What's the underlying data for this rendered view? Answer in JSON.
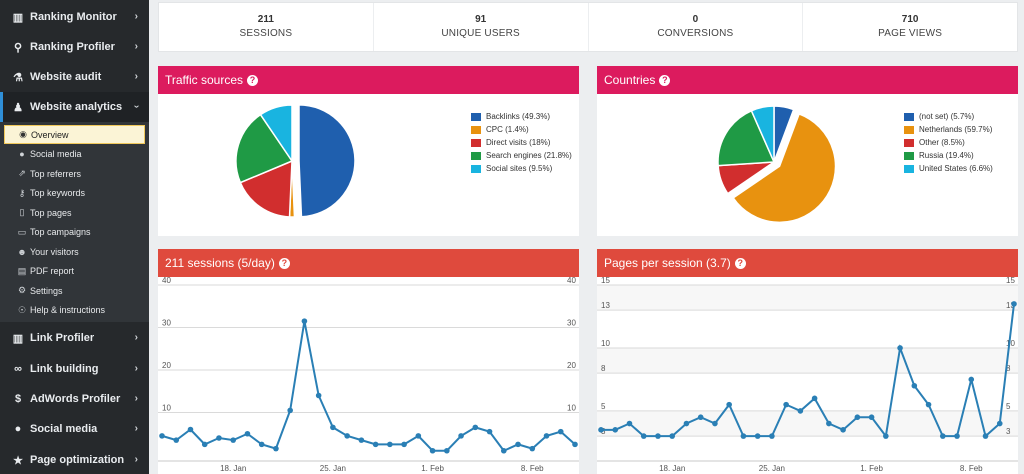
{
  "sidebar": {
    "items": [
      {
        "label": "Ranking Monitor",
        "icon": "bar-chart-icon",
        "glyph": "▥"
      },
      {
        "label": "Ranking Profiler",
        "icon": "search-icon",
        "glyph": "⚲"
      },
      {
        "label": "Website audit",
        "icon": "flask-icon",
        "glyph": "⚗"
      },
      {
        "label": "Website analytics",
        "icon": "person-icon",
        "glyph": "♟"
      },
      {
        "label": "Link Profiler",
        "icon": "bar-chart-icon",
        "glyph": "▥"
      },
      {
        "label": "Link building",
        "icon": "link-icon",
        "glyph": "∞"
      },
      {
        "label": "AdWords Profiler",
        "icon": "dollar-icon",
        "glyph": "$"
      },
      {
        "label": "Social media",
        "icon": "comments-icon",
        "glyph": "●"
      },
      {
        "label": "Page optimization",
        "icon": "star-icon",
        "glyph": "★"
      }
    ],
    "submenu": [
      {
        "label": "Overview",
        "icon": "eye-icon",
        "glyph": "◉"
      },
      {
        "label": "Social media",
        "icon": "comments-icon",
        "glyph": "●"
      },
      {
        "label": "Top referrers",
        "icon": "arrows-icon",
        "glyph": "⇗"
      },
      {
        "label": "Top keywords",
        "icon": "key-icon",
        "glyph": "⚷"
      },
      {
        "label": "Top pages",
        "icon": "file-icon",
        "glyph": "▯"
      },
      {
        "label": "Top campaigns",
        "icon": "desktop-icon",
        "glyph": "▭"
      },
      {
        "label": "Your visitors",
        "icon": "users-icon",
        "glyph": "☻"
      },
      {
        "label": "PDF report",
        "icon": "document-icon",
        "glyph": "▤"
      },
      {
        "label": "Settings",
        "icon": "cogs-icon",
        "glyph": "⚙"
      },
      {
        "label": "Help & instructions",
        "icon": "lightbulb-icon",
        "glyph": "☉"
      }
    ]
  },
  "stats": [
    {
      "value": "211",
      "label": "SESSIONS"
    },
    {
      "value": "91",
      "label": "UNIQUE USERS"
    },
    {
      "value": "0",
      "label": "CONVERSIONS"
    },
    {
      "value": "710",
      "label": "PAGE VIEWS"
    }
  ],
  "panels": {
    "traffic_title": "Traffic sources",
    "countries_title": "Countries",
    "sessions_title": "211 sessions (5/day)",
    "pages_title": "Pages per session (3.7)"
  },
  "colors": {
    "blue": "#1f5fae",
    "orange": "#e8920f",
    "red": "#d12e2e",
    "green": "#1f9a45",
    "cyan": "#19b4e0",
    "line": "#2a7fb5"
  },
  "chart_data": [
    {
      "type": "pie",
      "categories": [
        "Backlinks",
        "CPC",
        "Direct visits",
        "Search engines",
        "Social sites"
      ],
      "values": [
        49.3,
        1.4,
        18,
        21.8,
        9.5
      ],
      "legend": [
        "Backlinks (49.3%)",
        "CPC (1.4%)",
        "Direct visits (18%)",
        "Search engines (21.8%)",
        "Social sites (9.5%)"
      ],
      "colors": [
        "#1f5fae",
        "#e8920f",
        "#d12e2e",
        "#1f9a45",
        "#19b4e0"
      ],
      "exploded": 0
    },
    {
      "type": "pie",
      "categories": [
        "(not set)",
        "Netherlands",
        "Other",
        "Russia",
        "United States"
      ],
      "values": [
        5.7,
        59.7,
        8.5,
        19.4,
        6.6
      ],
      "legend": [
        "(not set) (5.7%)",
        "Netherlands (59.7%)",
        "Other (8.5%)",
        "Russia (19.4%)",
        "United States (6.6%)"
      ],
      "colors": [
        "#1f5fae",
        "#e8920f",
        "#d12e2e",
        "#1f9a45",
        "#19b4e0"
      ],
      "exploded": 1
    },
    {
      "type": "line",
      "ylim": [
        0,
        40
      ],
      "yticks": [
        10,
        20,
        30,
        40
      ],
      "xticks": [
        {
          "label": "18. Jan",
          "index": 5
        },
        {
          "label": "25. Jan",
          "index": 12
        },
        {
          "label": "1. Feb",
          "index": 19
        },
        {
          "label": "8. Feb",
          "index": 26
        }
      ],
      "values": [
        4.5,
        3.5,
        6,
        2.5,
        4,
        3.5,
        5,
        2.5,
        1.5,
        10.5,
        31.5,
        14,
        6.5,
        4.5,
        3.5,
        2.5,
        2.5,
        2.5,
        4.5,
        1,
        1,
        4.5,
        6.5,
        5.5,
        1,
        2.5,
        1.5,
        4.5,
        5.5,
        2.5
      ]
    },
    {
      "type": "line",
      "ylim": [
        1.5,
        15
      ],
      "yticks": [
        3,
        5,
        8,
        10,
        13,
        15
      ],
      "xticks": [
        {
          "label": "18. Jan",
          "index": 5
        },
        {
          "label": "25. Jan",
          "index": 12
        },
        {
          "label": "1. Feb",
          "index": 19
        },
        {
          "label": "8. Feb",
          "index": 26
        }
      ],
      "values": [
        3.5,
        3.5,
        4,
        3,
        3,
        3,
        4,
        4.5,
        4,
        5.5,
        3,
        3,
        3,
        5.5,
        5,
        6,
        4,
        3.5,
        4.5,
        4.5,
        3,
        10,
        7,
        5.5,
        3,
        3,
        7.5,
        3,
        4,
        13.5
      ]
    }
  ]
}
